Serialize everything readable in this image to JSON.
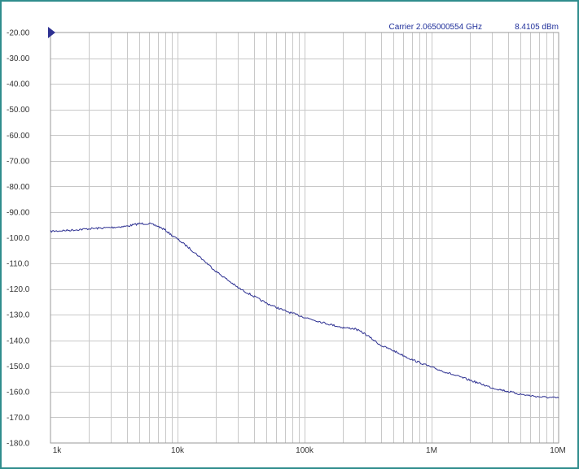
{
  "header": {
    "carrier_label": "Carrier 2.065000554 GHz",
    "carrier_power": "8.4105 dBm"
  },
  "chart_data": {
    "type": "line",
    "title": "",
    "xlabel": "",
    "ylabel": "",
    "x_scale": "log",
    "xlim": [
      1000,
      10000000
    ],
    "ylim": [
      -180,
      -20
    ],
    "grid": true,
    "x_ticks": [
      {
        "value": 1000,
        "label": "1k"
      },
      {
        "value": 10000,
        "label": "10k"
      },
      {
        "value": 100000,
        "label": "100k"
      },
      {
        "value": 1000000,
        "label": "1M"
      },
      {
        "value": 10000000,
        "label": "10M"
      }
    ],
    "y_ticks": [
      {
        "value": -20,
        "label": "-20.00"
      },
      {
        "value": -30,
        "label": "-30.00"
      },
      {
        "value": -40,
        "label": "-40.00"
      },
      {
        "value": -50,
        "label": "-50.00"
      },
      {
        "value": -60,
        "label": "-60.00"
      },
      {
        "value": -70,
        "label": "-70.00"
      },
      {
        "value": -80,
        "label": "-80.00"
      },
      {
        "value": -90,
        "label": "-90.00"
      },
      {
        "value": -100,
        "label": "-100.0"
      },
      {
        "value": -110,
        "label": "-110.0"
      },
      {
        "value": -120,
        "label": "-120.0"
      },
      {
        "value": -130,
        "label": "-130.0"
      },
      {
        "value": -140,
        "label": "-140.0"
      },
      {
        "value": -150,
        "label": "-150.0"
      },
      {
        "value": -160,
        "label": "-160.0"
      },
      {
        "value": -170,
        "label": "-170.0"
      },
      {
        "value": -180,
        "label": "-180.0"
      }
    ],
    "reference_marker": {
      "y": -20
    },
    "series": [
      {
        "color": "#2e3192",
        "x": [
          1000,
          1500,
          2000,
          3000,
          4000,
          5000,
          6000,
          7000,
          8000,
          9000,
          10000,
          12000,
          15000,
          20000,
          30000,
          50000,
          70000,
          100000,
          150000,
          200000,
          250000,
          300000,
          400000,
          500000,
          700000,
          1000000,
          1500000,
          2000000,
          3000000,
          5000000,
          7000000,
          10000000
        ],
        "y": [
          -97.5,
          -97,
          -96.5,
          -96,
          -95.5,
          -94.5,
          -94.5,
          -95.5,
          -97,
          -99,
          -100.5,
          -103.5,
          -107.5,
          -113,
          -119.5,
          -125.5,
          -128.5,
          -131,
          -133.5,
          -135,
          -135.5,
          -137.5,
          -142,
          -144,
          -147.5,
          -150.5,
          -153.5,
          -155.5,
          -158.5,
          -161,
          -162,
          -162.5
        ]
      }
    ]
  }
}
